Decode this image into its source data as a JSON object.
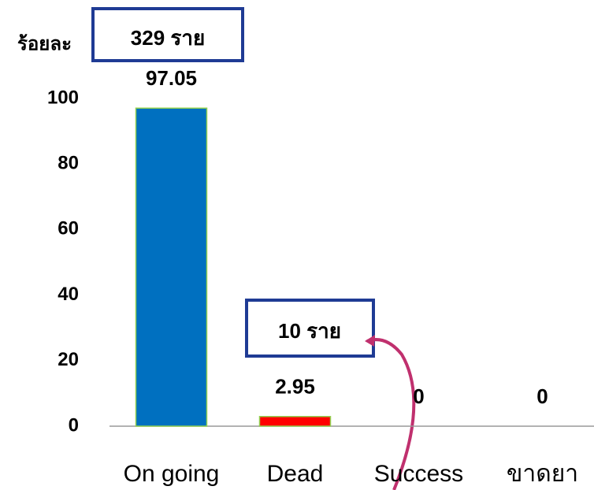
{
  "chart_data": {
    "type": "bar",
    "y_label": "ร้อยละ",
    "categories": [
      "On going",
      "Dead",
      "Success",
      "ขาดยา"
    ],
    "values": [
      97.05,
      2.95,
      0,
      0
    ],
    "colors": [
      "#0070c0",
      "#ff0000",
      "#0070c0",
      "#0070c0"
    ],
    "ylim": [
      0,
      100
    ],
    "yticks": [
      0,
      20,
      40,
      60,
      80,
      100
    ],
    "grid": false,
    "annotations": [
      "329 ราย",
      "10 ราย"
    ]
  }
}
